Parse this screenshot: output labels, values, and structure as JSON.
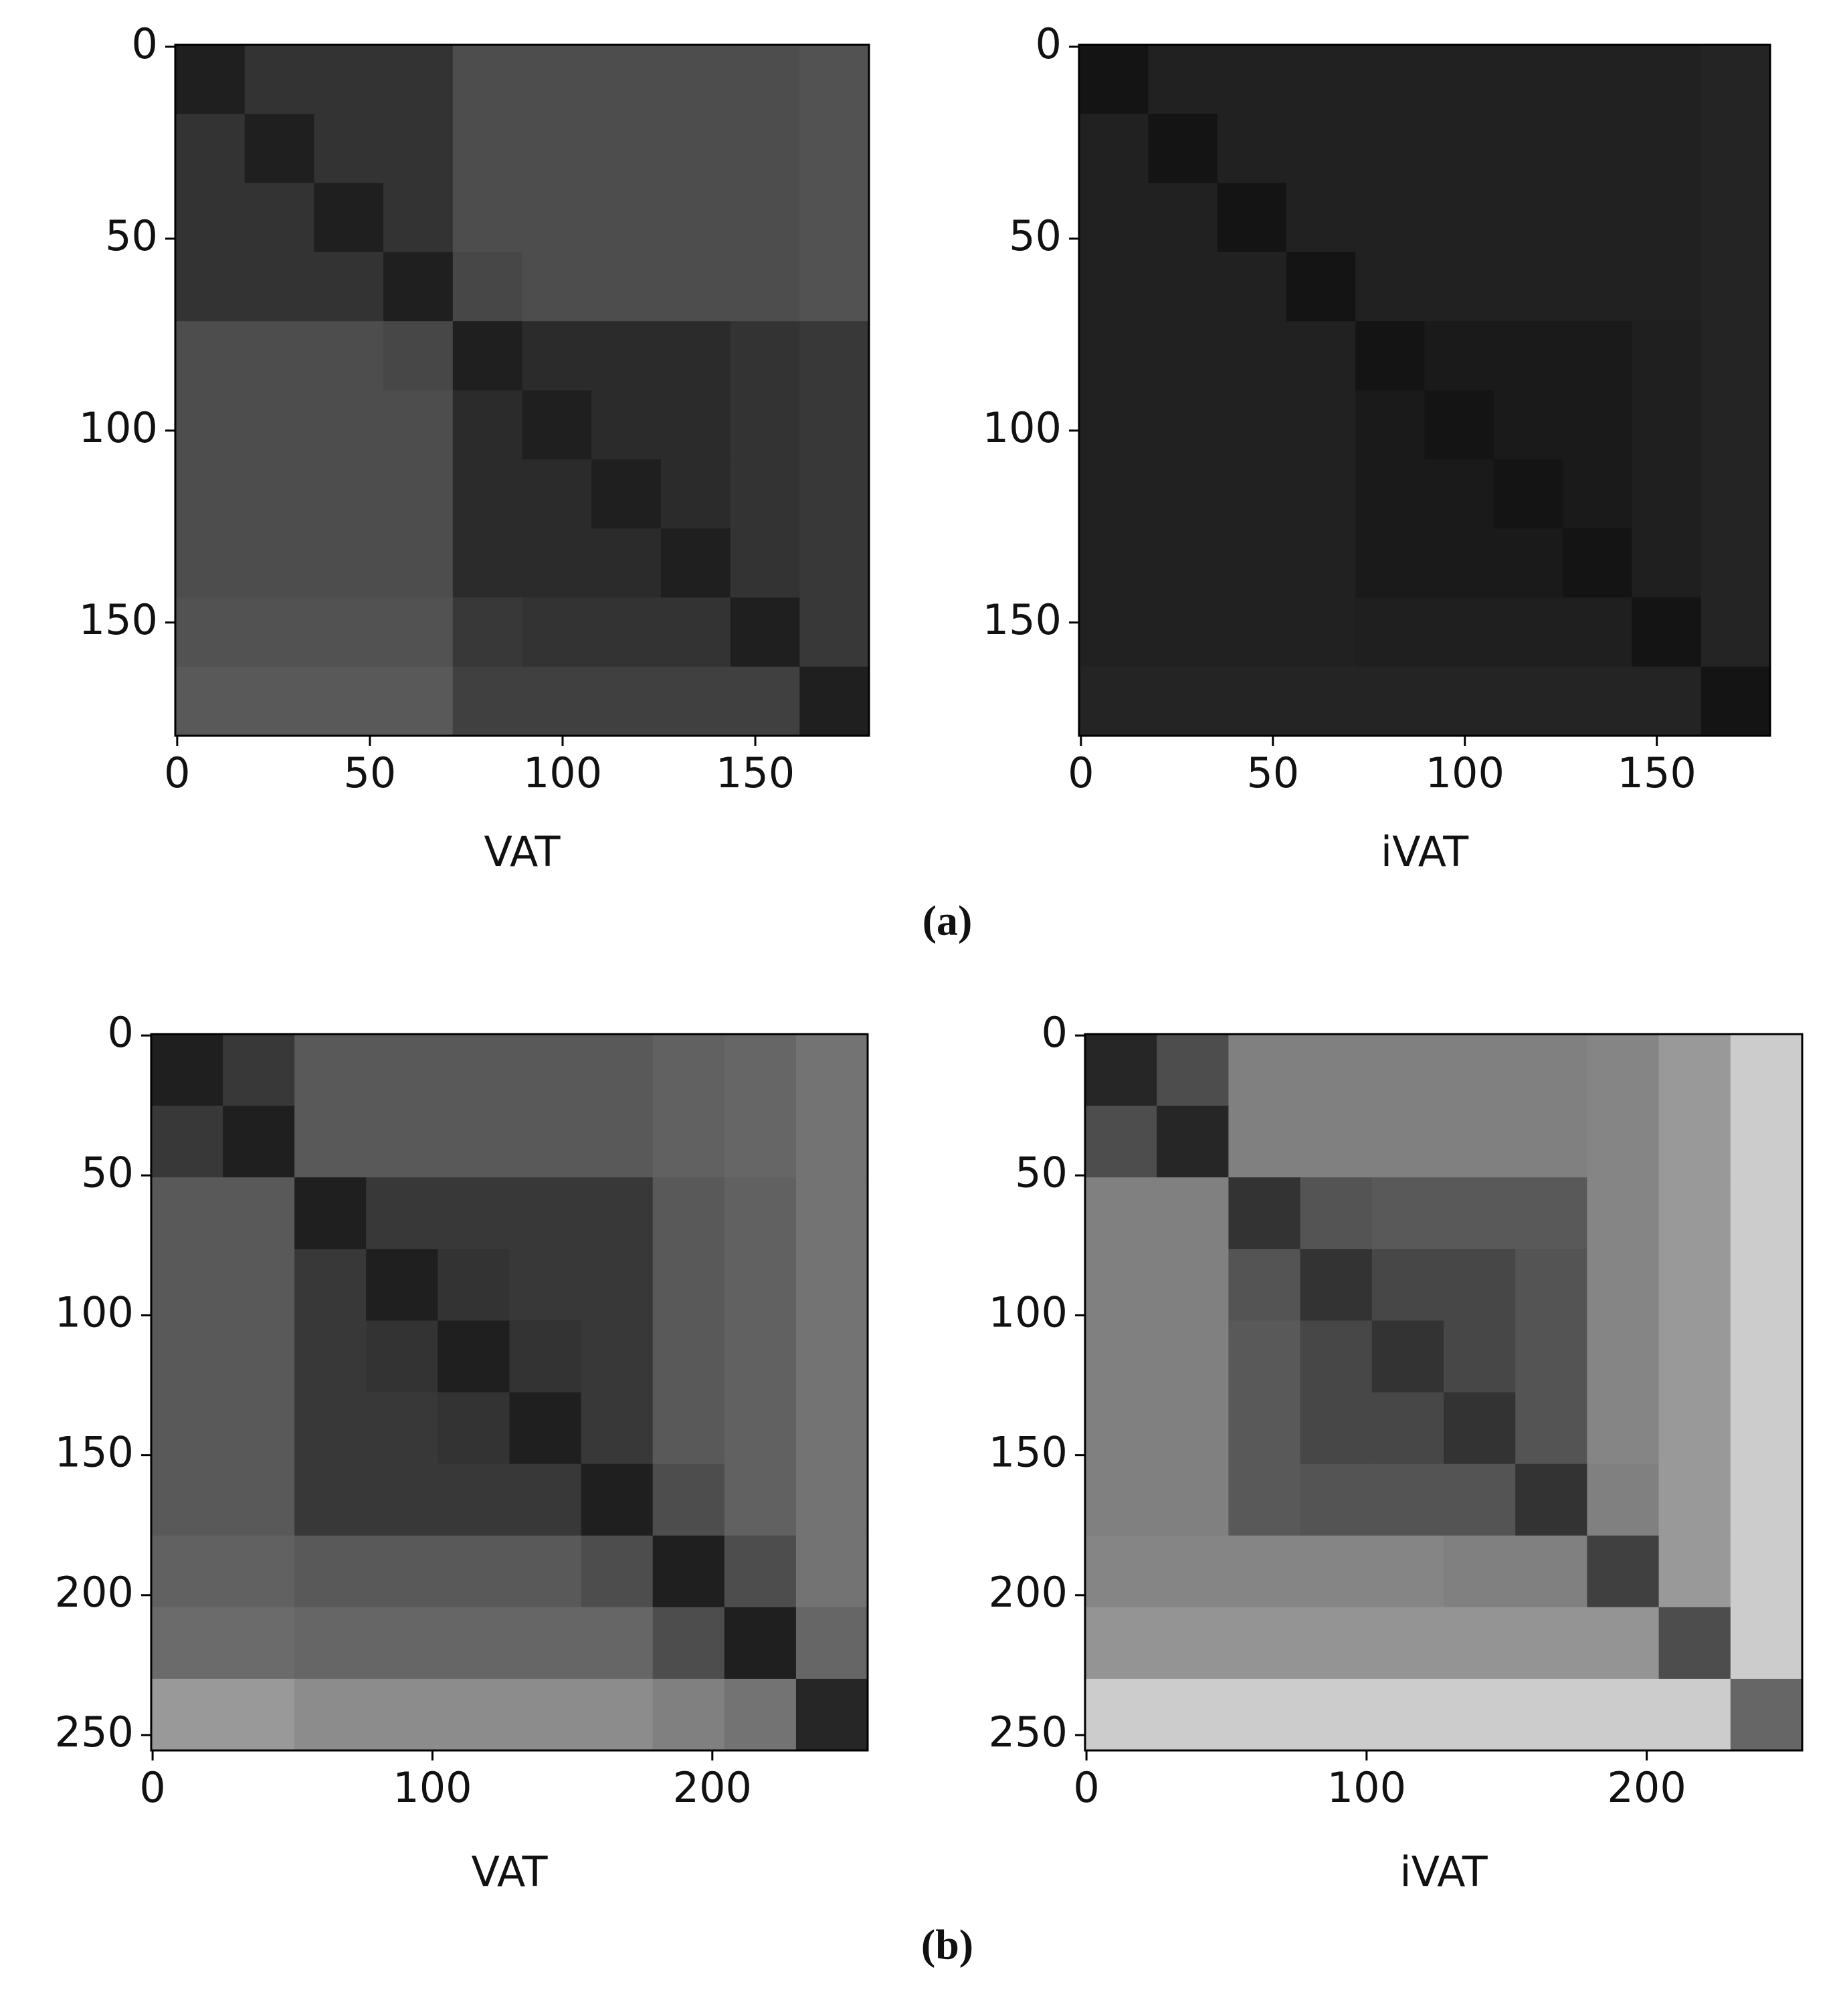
{
  "captions": [
    "(a)",
    "(b)"
  ],
  "chart_data": [
    {
      "type": "heatmap",
      "xlabel": "VAT",
      "colormap": "gray",
      "xlim": [
        -0.5,
        179.5
      ],
      "ylim": [
        179.5,
        -0.5
      ],
      "xticks": [
        0,
        50,
        100,
        150
      ],
      "yticks": [
        0,
        50,
        100,
        150
      ],
      "values": [
        [
          0.12,
          0.2,
          0.2,
          0.2,
          0.3,
          0.3,
          0.3,
          0.3,
          0.3,
          0.32
        ],
        [
          0.2,
          0.12,
          0.2,
          0.2,
          0.3,
          0.3,
          0.3,
          0.3,
          0.3,
          0.32
        ],
        [
          0.2,
          0.2,
          0.12,
          0.2,
          0.3,
          0.3,
          0.3,
          0.3,
          0.3,
          0.32
        ],
        [
          0.2,
          0.2,
          0.2,
          0.12,
          0.28,
          0.3,
          0.3,
          0.3,
          0.3,
          0.32
        ],
        [
          0.3,
          0.3,
          0.3,
          0.28,
          0.12,
          0.17,
          0.17,
          0.17,
          0.2,
          0.22
        ],
        [
          0.3,
          0.3,
          0.3,
          0.3,
          0.17,
          0.12,
          0.17,
          0.17,
          0.2,
          0.22
        ],
        [
          0.3,
          0.3,
          0.3,
          0.3,
          0.17,
          0.17,
          0.12,
          0.17,
          0.2,
          0.22
        ],
        [
          0.3,
          0.3,
          0.3,
          0.3,
          0.17,
          0.17,
          0.17,
          0.12,
          0.2,
          0.22
        ],
        [
          0.32,
          0.32,
          0.32,
          0.32,
          0.22,
          0.2,
          0.2,
          0.2,
          0.12,
          0.22
        ],
        [
          0.35,
          0.35,
          0.35,
          0.35,
          0.25,
          0.25,
          0.25,
          0.25,
          0.25,
          0.12
        ]
      ]
    },
    {
      "type": "heatmap",
      "xlabel": "iVAT",
      "colormap": "gray",
      "xlim": [
        -0.5,
        179.5
      ],
      "ylim": [
        179.5,
        -0.5
      ],
      "xticks": [
        0,
        50,
        100,
        150
      ],
      "yticks": [
        0,
        50,
        100,
        150
      ],
      "values": [
        [
          0.08,
          0.13,
          0.13,
          0.13,
          0.13,
          0.13,
          0.13,
          0.13,
          0.13,
          0.14
        ],
        [
          0.13,
          0.08,
          0.13,
          0.13,
          0.13,
          0.13,
          0.13,
          0.13,
          0.13,
          0.14
        ],
        [
          0.13,
          0.13,
          0.08,
          0.13,
          0.13,
          0.13,
          0.13,
          0.13,
          0.13,
          0.14
        ],
        [
          0.13,
          0.13,
          0.13,
          0.08,
          0.13,
          0.13,
          0.13,
          0.13,
          0.13,
          0.14
        ],
        [
          0.13,
          0.13,
          0.13,
          0.13,
          0.08,
          0.1,
          0.1,
          0.1,
          0.12,
          0.14
        ],
        [
          0.13,
          0.13,
          0.13,
          0.13,
          0.1,
          0.08,
          0.1,
          0.1,
          0.12,
          0.14
        ],
        [
          0.13,
          0.13,
          0.13,
          0.13,
          0.1,
          0.1,
          0.08,
          0.1,
          0.12,
          0.14
        ],
        [
          0.13,
          0.13,
          0.13,
          0.13,
          0.1,
          0.1,
          0.1,
          0.08,
          0.12,
          0.14
        ],
        [
          0.13,
          0.13,
          0.13,
          0.13,
          0.12,
          0.12,
          0.12,
          0.12,
          0.08,
          0.14
        ],
        [
          0.14,
          0.14,
          0.14,
          0.14,
          0.14,
          0.14,
          0.14,
          0.14,
          0.14,
          0.08
        ]
      ]
    },
    {
      "type": "heatmap",
      "xlabel": "VAT",
      "colormap": "gray",
      "xlim": [
        -0.5,
        255.5
      ],
      "ylim": [
        255.5,
        -0.5
      ],
      "xticks": [
        0,
        100,
        200
      ],
      "yticks": [
        0,
        50,
        100,
        150,
        200,
        250
      ],
      "values": [
        [
          0.12,
          0.22,
          0.35,
          0.35,
          0.35,
          0.35,
          0.35,
          0.38,
          0.4,
          0.45
        ],
        [
          0.22,
          0.12,
          0.35,
          0.35,
          0.35,
          0.35,
          0.35,
          0.38,
          0.4,
          0.45
        ],
        [
          0.35,
          0.35,
          0.12,
          0.22,
          0.22,
          0.22,
          0.22,
          0.35,
          0.38,
          0.45
        ],
        [
          0.35,
          0.35,
          0.22,
          0.12,
          0.2,
          0.22,
          0.22,
          0.35,
          0.38,
          0.45
        ],
        [
          0.35,
          0.35,
          0.22,
          0.2,
          0.12,
          0.2,
          0.22,
          0.35,
          0.38,
          0.45
        ],
        [
          0.35,
          0.35,
          0.22,
          0.22,
          0.2,
          0.12,
          0.22,
          0.35,
          0.38,
          0.45
        ],
        [
          0.35,
          0.35,
          0.22,
          0.22,
          0.22,
          0.22,
          0.12,
          0.3,
          0.38,
          0.45
        ],
        [
          0.38,
          0.38,
          0.35,
          0.35,
          0.35,
          0.35,
          0.3,
          0.12,
          0.3,
          0.45
        ],
        [
          0.42,
          0.42,
          0.4,
          0.4,
          0.4,
          0.4,
          0.4,
          0.3,
          0.12,
          0.4
        ],
        [
          0.6,
          0.6,
          0.55,
          0.55,
          0.55,
          0.55,
          0.55,
          0.5,
          0.45,
          0.15
        ]
      ]
    },
    {
      "type": "heatmap",
      "xlabel": "iVAT",
      "colormap": "gray",
      "xlim": [
        -0.5,
        255.5
      ],
      "ylim": [
        255.5,
        -0.5
      ],
      "xticks": [
        0,
        100,
        200
      ],
      "yticks": [
        0,
        50,
        100,
        150,
        200,
        250
      ],
      "values": [
        [
          0.15,
          0.3,
          0.5,
          0.5,
          0.5,
          0.5,
          0.5,
          0.52,
          0.6,
          0.8
        ],
        [
          0.3,
          0.15,
          0.5,
          0.5,
          0.5,
          0.5,
          0.5,
          0.52,
          0.6,
          0.8
        ],
        [
          0.5,
          0.5,
          0.2,
          0.33,
          0.35,
          0.35,
          0.35,
          0.52,
          0.6,
          0.8
        ],
        [
          0.5,
          0.5,
          0.33,
          0.2,
          0.28,
          0.28,
          0.33,
          0.52,
          0.6,
          0.8
        ],
        [
          0.5,
          0.5,
          0.35,
          0.28,
          0.2,
          0.28,
          0.33,
          0.52,
          0.6,
          0.8
        ],
        [
          0.5,
          0.5,
          0.35,
          0.28,
          0.28,
          0.2,
          0.33,
          0.52,
          0.6,
          0.8
        ],
        [
          0.5,
          0.5,
          0.35,
          0.33,
          0.33,
          0.33,
          0.2,
          0.5,
          0.6,
          0.8
        ],
        [
          0.52,
          0.52,
          0.52,
          0.52,
          0.52,
          0.5,
          0.5,
          0.25,
          0.6,
          0.8
        ],
        [
          0.58,
          0.58,
          0.58,
          0.58,
          0.58,
          0.58,
          0.58,
          0.58,
          0.3,
          0.8
        ],
        [
          0.8,
          0.8,
          0.8,
          0.8,
          0.8,
          0.8,
          0.8,
          0.8,
          0.8,
          0.4
        ]
      ]
    }
  ]
}
